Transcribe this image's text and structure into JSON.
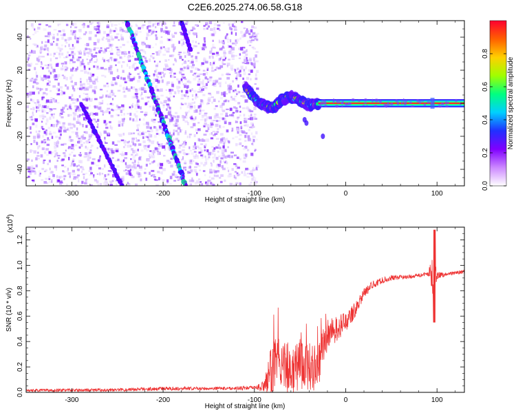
{
  "figure_title": "C2E6.2025.274.06.58.G18",
  "chart_data": [
    {
      "type": "heatmap",
      "name": "spectrogram",
      "xlabel": "Height of straight line (km)",
      "ylabel": "Frequency (Hz)",
      "xlim": [
        -350,
        130
      ],
      "ylim": [
        -50,
        50
      ],
      "xticks": [
        -300,
        -200,
        -100,
        0,
        100
      ],
      "yticks": [
        -40,
        -20,
        0,
        20,
        40
      ],
      "colorbar": {
        "label": "Normalized spectral amplitude",
        "range": [
          0,
          1
        ],
        "ticks": [
          0.0,
          0.2,
          0.4,
          0.6,
          0.8
        ],
        "tick_labels": [
          "0.0",
          "0.2",
          "0.4",
          "0.6",
          "0.8"
        ],
        "colors": [
          "#ffffff",
          "#cc88ff",
          "#8000ff",
          "#2030ff",
          "#00d0ff",
          "#00ff80",
          "#a0ff00",
          "#ffd000",
          "#ff6000",
          "#ff0030"
        ]
      },
      "noise_region_x": [
        -350,
        -98
      ],
      "features": [
        {
          "name": "descending-streak-main",
          "points": [
            [
              -240,
              50
            ],
            [
              -175,
              -50
            ]
          ]
        },
        {
          "name": "descending-streak-lower",
          "points": [
            [
              -290,
              0
            ],
            [
              -245,
              -50
            ]
          ]
        },
        {
          "name": "descending-streak-upper",
          "points": [
            [
              -180,
              50
            ],
            [
              -170,
              32
            ]
          ]
        },
        {
          "name": "transition-signal",
          "points": [
            [
              -110,
              10
            ],
            [
              -95,
              0
            ],
            [
              -80,
              -3
            ],
            [
              -70,
              2
            ],
            [
              -60,
              4
            ],
            [
              -50,
              2
            ],
            [
              -40,
              -1
            ],
            [
              -30,
              0
            ]
          ]
        },
        {
          "name": "carrier-line",
          "points": [
            [
              -30,
              0
            ],
            [
              130,
              0
            ]
          ]
        }
      ]
    },
    {
      "type": "line",
      "name": "snr",
      "xlabel": "Height of straight line (km)",
      "ylabel": "SNR (10 * v/v)",
      "multiplier_label": "(x10",
      "multiplier_exponent": "4",
      "multiplier_close": ")",
      "xlim": [
        -350,
        130
      ],
      "ylim": [
        0,
        1.3
      ],
      "xticks": [
        -300,
        -200,
        -100,
        0,
        100
      ],
      "yticks": [
        0.0,
        0.2,
        0.4,
        0.6,
        0.8,
        1.0,
        1.2
      ],
      "ytick_labels": [
        "0.0",
        "0.2",
        "0.4",
        "0.6",
        "0.8",
        "1.0",
        "1.2"
      ],
      "series_color": "#ee3333",
      "envelope": {
        "x": [
          -350,
          -250,
          -200,
          -150,
          -100,
          -88,
          -80,
          -70,
          -60,
          -50,
          -40,
          -30,
          -25,
          -20,
          -10,
          0,
          10,
          20,
          30,
          40,
          50,
          70,
          90,
          95,
          97,
          100,
          110,
          130
        ],
        "y": [
          0.015,
          0.02,
          0.03,
          0.03,
          0.035,
          0.05,
          0.2,
          0.25,
          0.15,
          0.22,
          0.18,
          0.2,
          0.35,
          0.45,
          0.5,
          0.55,
          0.65,
          0.78,
          0.85,
          0.88,
          0.9,
          0.91,
          0.93,
          0.95,
          0.9,
          0.92,
          0.93,
          0.95
        ],
        "amp": [
          0.01,
          0.012,
          0.015,
          0.012,
          0.015,
          0.05,
          0.25,
          0.2,
          0.18,
          0.2,
          0.18,
          0.18,
          0.15,
          0.12,
          0.1,
          0.08,
          0.06,
          0.04,
          0.03,
          0.025,
          0.02,
          0.015,
          0.015,
          0.15,
          0.35,
          0.03,
          0.015,
          0.015
        ]
      }
    }
  ]
}
